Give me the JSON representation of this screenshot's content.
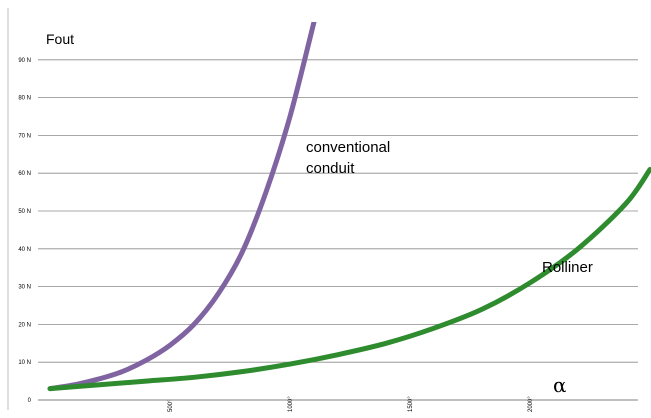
{
  "chart_data": {
    "type": "line",
    "ylabel": "Fout",
    "xlabel": "α",
    "ylim": [
      0,
      100
    ],
    "xlim": [
      0,
      2500
    ],
    "yticks": [
      {
        "v": 0,
        "label": "0"
      },
      {
        "v": 10,
        "label": "10 N"
      },
      {
        "v": 20,
        "label": "20 N"
      },
      {
        "v": 30,
        "label": "30 N"
      },
      {
        "v": 40,
        "label": "40 N"
      },
      {
        "v": 50,
        "label": "50 N"
      },
      {
        "v": 60,
        "label": "60 N"
      },
      {
        "v": 70,
        "label": "70 N"
      },
      {
        "v": 80,
        "label": "80 N"
      },
      {
        "v": 90,
        "label": "90 N"
      }
    ],
    "xticks": [
      {
        "v": 500,
        "label": "500°"
      },
      {
        "v": 1000,
        "label": "1000°"
      },
      {
        "v": 1500,
        "label": "1500°"
      },
      {
        "v": 2000,
        "label": "2000°"
      }
    ],
    "grid": true,
    "series": [
      {
        "name": "conventional conduit",
        "color": "#8064A2",
        "points": [
          [
            0,
            3
          ],
          [
            100,
            4
          ],
          [
            200,
            5.5
          ],
          [
            300,
            7.5
          ],
          [
            400,
            10.5
          ],
          [
            500,
            14.5
          ],
          [
            600,
            20
          ],
          [
            700,
            28
          ],
          [
            800,
            39
          ],
          [
            900,
            55
          ],
          [
            1000,
            75
          ],
          [
            1100,
            100
          ]
        ]
      },
      {
        "name": "Rolliner",
        "color": "#2E8B2E",
        "points": [
          [
            0,
            3
          ],
          [
            200,
            4
          ],
          [
            400,
            5
          ],
          [
            600,
            6
          ],
          [
            800,
            7.5
          ],
          [
            1000,
            9.5
          ],
          [
            1200,
            12
          ],
          [
            1400,
            15
          ],
          [
            1600,
            19
          ],
          [
            1800,
            24
          ],
          [
            2000,
            31
          ],
          [
            2200,
            40
          ],
          [
            2400,
            52
          ],
          [
            2500,
            61
          ]
        ]
      }
    ]
  }
}
